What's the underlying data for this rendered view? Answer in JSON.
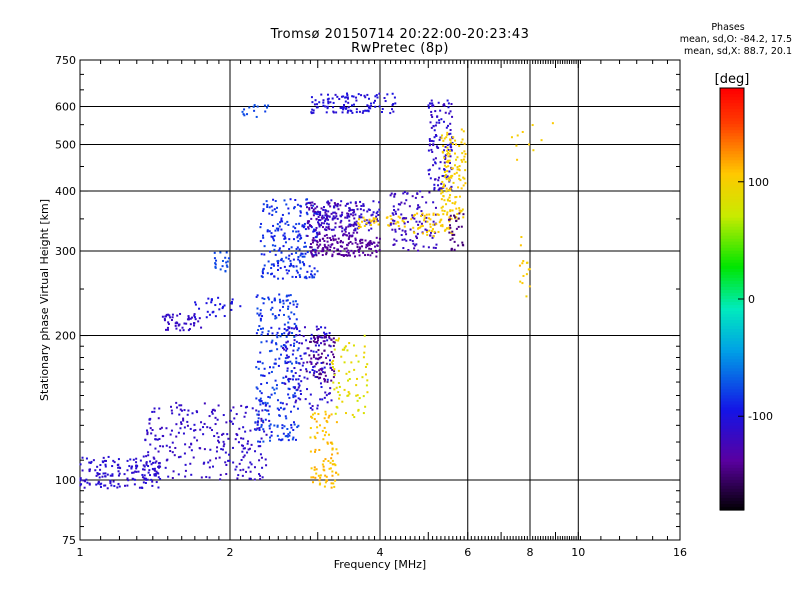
{
  "title": {
    "line1": "Tromsø 20150714 20:22:00-20:23:43",
    "line2": "RwPretec (8p)"
  },
  "stats": {
    "heading": "Phases",
    "line1": "mean, sd,O: -84.2, 17.5",
    "line2": "mean, sd,X: 88.7, 20.1"
  },
  "colorbar": {
    "unit_label": "[deg]",
    "tick_labels": [
      "100",
      "0",
      "-100"
    ],
    "tick_values": [
      100,
      0,
      -100
    ],
    "range": [
      -180,
      180
    ]
  },
  "chart_data": {
    "type": "scatter",
    "xlabel": "Frequency [MHz]",
    "ylabel": "Stationary phase Virtual Height [km]",
    "x_scale": "log",
    "y_scale": "log",
    "xlim": [
      1,
      16
    ],
    "ylim": [
      75,
      750
    ],
    "x_ticks": [
      1,
      2,
      4,
      6,
      8,
      10,
      16
    ],
    "x_tick_labels": [
      "1",
      "2",
      "4",
      "6",
      "8",
      "10",
      "16"
    ],
    "y_ticks": [
      75,
      100,
      200,
      300,
      400,
      500,
      600,
      750
    ],
    "y_tick_labels": [
      "75",
      "100",
      "200",
      "300",
      "400",
      "500",
      "600",
      "750"
    ],
    "grid": true,
    "clusters": [
      {
        "x0": 1.0,
        "x1": 1.45,
        "y0": 96,
        "y1": 112,
        "n": 160,
        "p0": -100,
        "p1": -115
      },
      {
        "x0": 1.35,
        "x1": 2.4,
        "y0": 100,
        "y1": 145,
        "n": 260,
        "p0": -105,
        "p1": -120
      },
      {
        "x0": 1.45,
        "x1": 1.75,
        "y0": 205,
        "y1": 222,
        "n": 50,
        "p0": -110,
        "p1": -118
      },
      {
        "x0": 1.7,
        "x1": 2.1,
        "y0": 218,
        "y1": 240,
        "n": 30,
        "p0": -95,
        "p1": -100
      },
      {
        "x0": 2.25,
        "x1": 2.75,
        "y0": 120,
        "y1": 245,
        "n": 260,
        "p0": -70,
        "p1": -95
      },
      {
        "x0": 2.55,
        "x1": 3.2,
        "y0": 140,
        "y1": 210,
        "n": 140,
        "p0": -95,
        "p1": -120
      },
      {
        "x0": 2.85,
        "x1": 3.25,
        "y0": 160,
        "y1": 200,
        "n": 70,
        "p0": -135,
        "p1": -150
      },
      {
        "x0": 2.9,
        "x1": 3.3,
        "y0": 95,
        "y1": 140,
        "n": 90,
        "p0": 100,
        "p1": 120
      },
      {
        "x0": 3.2,
        "x1": 3.8,
        "y0": 135,
        "y1": 200,
        "n": 70,
        "p0": 75,
        "p1": 100
      },
      {
        "x0": 1.85,
        "x1": 2.0,
        "y0": 272,
        "y1": 298,
        "n": 20,
        "p0": -70,
        "p1": -80
      },
      {
        "x0": 2.3,
        "x1": 3.0,
        "y0": 262,
        "y1": 385,
        "n": 220,
        "p0": -75,
        "p1": -95
      },
      {
        "x0": 2.9,
        "x1": 4.0,
        "y0": 292,
        "y1": 320,
        "n": 150,
        "p0": -130,
        "p1": -145
      },
      {
        "x0": 2.85,
        "x1": 3.6,
        "y0": 320,
        "y1": 380,
        "n": 120,
        "p0": -120,
        "p1": -135
      },
      {
        "x0": 3.0,
        "x1": 4.0,
        "y0": 330,
        "y1": 385,
        "n": 110,
        "p0": -105,
        "p1": -115
      },
      {
        "x0": 3.6,
        "x1": 4.5,
        "y0": 335,
        "y1": 355,
        "n": 40,
        "p0": 100,
        "p1": 110
      },
      {
        "x0": 4.2,
        "x1": 5.2,
        "y0": 300,
        "y1": 400,
        "n": 110,
        "p0": -110,
        "p1": -125
      },
      {
        "x0": 4.6,
        "x1": 5.6,
        "y0": 320,
        "y1": 360,
        "n": 60,
        "p0": 100,
        "p1": 110
      },
      {
        "x0": 5.0,
        "x1": 5.6,
        "y0": 400,
        "y1": 620,
        "n": 130,
        "p0": -100,
        "p1": -120
      },
      {
        "x0": 5.3,
        "x1": 5.95,
        "y0": 350,
        "y1": 540,
        "n": 130,
        "p0": 95,
        "p1": 110
      },
      {
        "x0": 5.5,
        "x1": 5.9,
        "y0": 300,
        "y1": 360,
        "n": 30,
        "p0": -140,
        "p1": -150
      },
      {
        "x0": 2.9,
        "x1": 4.3,
        "y0": 580,
        "y1": 640,
        "n": 110,
        "p0": -95,
        "p1": -110
      },
      {
        "x0": 2.1,
        "x1": 2.4,
        "y0": 570,
        "y1": 605,
        "n": 15,
        "p0": -70,
        "p1": -80
      },
      {
        "x0": 7.6,
        "x1": 8.0,
        "y0": 240,
        "y1": 330,
        "n": 15,
        "p0": 100,
        "p1": 115
      },
      {
        "x0": 7.2,
        "x1": 9.5,
        "y0": 450,
        "y1": 560,
        "n": 10,
        "p0": 100,
        "p1": 110
      }
    ]
  }
}
